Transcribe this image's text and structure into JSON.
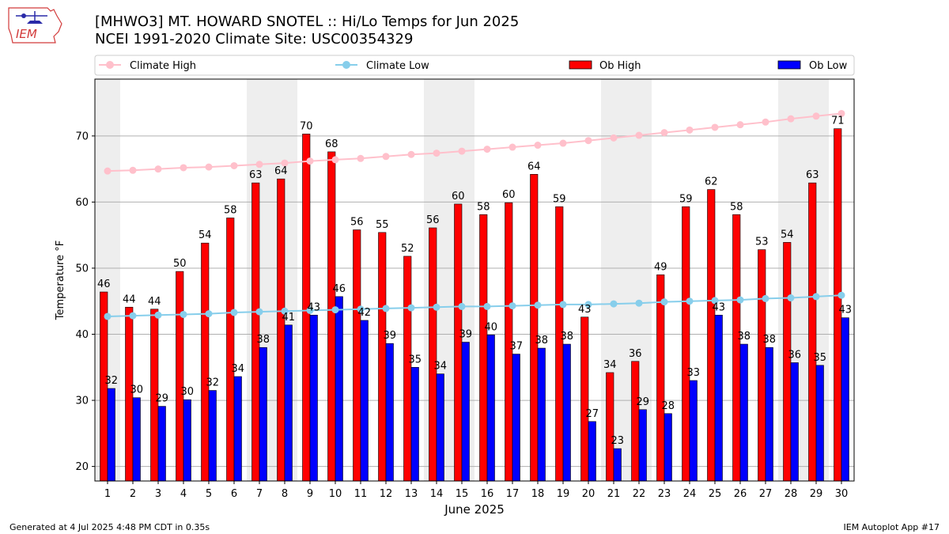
{
  "header": {
    "title_line1": "[MHWO3] MT. HOWARD SNOTEL :: Hi/Lo Temps for Jun 2025",
    "title_line2": "NCEI 1991-2020 Climate Site: USC00354329",
    "logo_text": "IEM"
  },
  "footer": {
    "generated": "Generated at 4 Jul 2025 4:48 PM CDT in 0.35s",
    "app": "IEM Autoplot App #17"
  },
  "colors": {
    "ob_high": "#ff0000",
    "ob_low": "#0000ff",
    "climate_high": "#ffc0cb",
    "climate_low": "#87ceeb",
    "weekend_shade": "#eeeeee",
    "grid": "#b0b0b0",
    "logo": "#d23a3a"
  },
  "chart_data": {
    "type": "bar",
    "xlabel": "June 2025",
    "ylabel": "Temperature °F",
    "ylim": [
      17.8,
      78.6
    ],
    "yticks": [
      20,
      30,
      40,
      50,
      60,
      70
    ],
    "grid": "horizontal",
    "legend_position": "top",
    "categories": [
      "1",
      "2",
      "3",
      "4",
      "5",
      "6",
      "7",
      "8",
      "9",
      "10",
      "11",
      "12",
      "13",
      "14",
      "15",
      "16",
      "17",
      "18",
      "19",
      "20",
      "21",
      "22",
      "23",
      "24",
      "25",
      "26",
      "27",
      "28",
      "29",
      "30"
    ],
    "shaded_days": [
      1,
      7,
      8,
      14,
      15,
      21,
      22,
      28,
      29
    ],
    "series": [
      {
        "name": "Ob High",
        "kind": "bar",
        "values": [
          46.4,
          44.1,
          43.8,
          49.5,
          53.8,
          57.6,
          62.9,
          63.5,
          70.3,
          67.6,
          55.8,
          55.4,
          51.8,
          56.1,
          59.7,
          58.1,
          59.9,
          64.2,
          59.3,
          42.6,
          34.2,
          35.9,
          49.0,
          59.3,
          61.9,
          58.1,
          52.8,
          53.9,
          62.9,
          71.1
        ],
        "labels": [
          "46",
          "44",
          "44",
          "50",
          "54",
          "58",
          "63",
          "64",
          "70",
          "68",
          "56",
          "55",
          "52",
          "56",
          "60",
          "58",
          "60",
          "64",
          "59",
          "43",
          "34",
          "36",
          "49",
          "59",
          "62",
          "58",
          "53",
          "54",
          "63",
          "71"
        ]
      },
      {
        "name": "Ob Low",
        "kind": "bar",
        "values": [
          31.8,
          30.4,
          29.1,
          30.1,
          31.5,
          33.6,
          38.0,
          41.4,
          42.9,
          45.7,
          42.1,
          38.6,
          35.0,
          34.0,
          38.8,
          39.9,
          37.0,
          37.9,
          38.5,
          26.8,
          22.7,
          28.6,
          28.0,
          33.0,
          42.9,
          38.5,
          38.0,
          35.7,
          35.3,
          42.5
        ],
        "labels": [
          "32",
          "30",
          "29",
          "30",
          "32",
          "34",
          "38",
          "41",
          "43",
          "46",
          "42",
          "39",
          "35",
          "34",
          "39",
          "40",
          "37",
          "38",
          "38",
          "27",
          "23",
          "29",
          "28",
          "33",
          "43",
          "38",
          "38",
          "36",
          "35",
          "43"
        ]
      },
      {
        "name": "Climate High",
        "kind": "line",
        "values": [
          64.7,
          64.8,
          65.0,
          65.2,
          65.3,
          65.5,
          65.7,
          65.9,
          66.2,
          66.4,
          66.6,
          66.9,
          67.2,
          67.4,
          67.7,
          68.0,
          68.3,
          68.6,
          68.9,
          69.3,
          69.7,
          70.1,
          70.5,
          70.9,
          71.3,
          71.7,
          72.1,
          72.6,
          73.0,
          73.4
        ]
      },
      {
        "name": "Climate Low",
        "kind": "line",
        "values": [
          42.7,
          42.8,
          42.9,
          43.0,
          43.1,
          43.3,
          43.4,
          43.5,
          43.6,
          43.7,
          43.8,
          43.9,
          44.0,
          44.1,
          44.2,
          44.2,
          44.3,
          44.4,
          44.5,
          44.5,
          44.6,
          44.7,
          44.9,
          45.0,
          45.1,
          45.2,
          45.4,
          45.5,
          45.7,
          45.9
        ]
      }
    ]
  }
}
